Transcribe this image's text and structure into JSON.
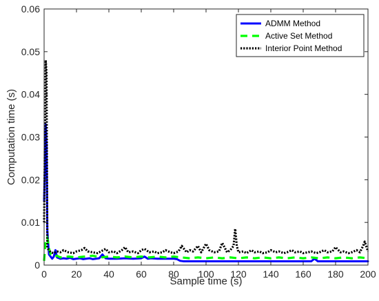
{
  "chart_data": {
    "type": "line",
    "title": "",
    "xlabel": "Sample time (s)",
    "ylabel": "Computation time (s)",
    "xlim": [
      0,
      200
    ],
    "ylim": [
      0,
      0.06
    ],
    "xticks": [
      0,
      20,
      40,
      60,
      80,
      100,
      120,
      140,
      160,
      180,
      200
    ],
    "yticks": [
      0,
      0.01,
      0.02,
      0.03,
      0.04,
      0.05,
      0.06
    ],
    "xtick_labels": [
      "0",
      "20",
      "40",
      "60",
      "80",
      "100",
      "120",
      "140",
      "160",
      "180",
      "200"
    ],
    "ytick_labels": [
      "0",
      "0.01",
      "0.02",
      "0.03",
      "0.04",
      "0.05",
      "0.06"
    ],
    "grid": false,
    "legend_position": "top-right",
    "series": [
      {
        "name": "ADMM Method",
        "color": "#0000ff",
        "style": "solid",
        "x": [
          0,
          1,
          1.5,
          2,
          3,
          4,
          5,
          6,
          7,
          8,
          10,
          12,
          14,
          16,
          18,
          20,
          22,
          24,
          26,
          28,
          30,
          32,
          34,
          36,
          38,
          40,
          45,
          50,
          55,
          60,
          62,
          64,
          66,
          70,
          75,
          80,
          82,
          84,
          86,
          90,
          100,
          110,
          120,
          130,
          140,
          150,
          160,
          165,
          167,
          169,
          170,
          180,
          190,
          200
        ],
        "y": [
          0.015,
          0.033,
          0.028,
          0.008,
          0.0025,
          0.002,
          0.0015,
          0.002,
          0.0035,
          0.0018,
          0.0015,
          0.0016,
          0.0015,
          0.0017,
          0.0014,
          0.0015,
          0.0016,
          0.0014,
          0.0015,
          0.0016,
          0.0014,
          0.0015,
          0.0016,
          0.0025,
          0.0016,
          0.0015,
          0.0015,
          0.0016,
          0.0015,
          0.0016,
          0.002,
          0.0015,
          0.0016,
          0.0015,
          0.0015,
          0.0015,
          0.0014,
          0.001,
          0.0009,
          0.0009,
          0.0009,
          0.0009,
          0.0009,
          0.0009,
          0.0009,
          0.0009,
          0.0009,
          0.0009,
          0.0015,
          0.0009,
          0.0009,
          0.0009,
          0.0009,
          0.0009
        ]
      },
      {
        "name": "Active Set Method",
        "color": "#00ff00",
        "style": "dashed",
        "x": [
          0,
          1,
          2,
          3,
          4,
          6,
          8,
          10,
          15,
          20,
          25,
          30,
          35,
          40,
          45,
          50,
          55,
          60,
          65,
          70,
          75,
          80,
          85,
          90,
          95,
          100,
          105,
          110,
          115,
          120,
          125,
          130,
          135,
          140,
          145,
          150,
          155,
          160,
          165,
          170,
          175,
          180,
          185,
          190,
          195,
          200
        ],
        "y": [
          0.001,
          0.006,
          0.0065,
          0.004,
          0.0025,
          0.002,
          0.0022,
          0.0018,
          0.002,
          0.0018,
          0.002,
          0.0022,
          0.0018,
          0.002,
          0.0018,
          0.002,
          0.0018,
          0.002,
          0.0018,
          0.002,
          0.0018,
          0.002,
          0.0018,
          0.0016,
          0.0018,
          0.0016,
          0.0018,
          0.0016,
          0.0018,
          0.0016,
          0.0018,
          0.0016,
          0.0018,
          0.0016,
          0.0018,
          0.0016,
          0.0018,
          0.0016,
          0.0018,
          0.0016,
          0.0018,
          0.0016,
          0.0018,
          0.0016,
          0.0018,
          0.0016
        ]
      },
      {
        "name": "Interior Point Method",
        "color": "#000000",
        "style": "dotted",
        "x": [
          0,
          1,
          1.5,
          2,
          3,
          4,
          6,
          8,
          10,
          12,
          15,
          18,
          20,
          23,
          25,
          27,
          30,
          33,
          35,
          38,
          40,
          43,
          45,
          48,
          50,
          52,
          55,
          58,
          60,
          62,
          65,
          68,
          70,
          73,
          75,
          78,
          80,
          83,
          85,
          88,
          90,
          92,
          95,
          97,
          100,
          102,
          105,
          108,
          110,
          113,
          115,
          117,
          118,
          119,
          120,
          123,
          125,
          128,
          130,
          133,
          135,
          138,
          140,
          143,
          145,
          148,
          150,
          153,
          155,
          158,
          160,
          163,
          165,
          168,
          170,
          173,
          175,
          178,
          180,
          183,
          185,
          188,
          190,
          193,
          195,
          197,
          198,
          200
        ],
        "y": [
          0.01,
          0.048,
          0.045,
          0.004,
          0.0035,
          0.003,
          0.0028,
          0.0032,
          0.003,
          0.0035,
          0.003,
          0.0028,
          0.0032,
          0.0035,
          0.004,
          0.0032,
          0.003,
          0.0028,
          0.0032,
          0.0038,
          0.003,
          0.0032,
          0.0028,
          0.0035,
          0.0042,
          0.003,
          0.0032,
          0.0028,
          0.0035,
          0.0038,
          0.003,
          0.0032,
          0.0028,
          0.003,
          0.0035,
          0.003,
          0.0028,
          0.0032,
          0.0045,
          0.003,
          0.0035,
          0.0032,
          0.0045,
          0.003,
          0.005,
          0.0035,
          0.003,
          0.0032,
          0.0052,
          0.003,
          0.0035,
          0.0045,
          0.0085,
          0.0045,
          0.003,
          0.0032,
          0.0028,
          0.0035,
          0.003,
          0.0032,
          0.0028,
          0.003,
          0.0035,
          0.003,
          0.0032,
          0.0028,
          0.003,
          0.0035,
          0.003,
          0.0032,
          0.0028,
          0.003,
          0.0032,
          0.0028,
          0.003,
          0.0035,
          0.003,
          0.0032,
          0.0042,
          0.003,
          0.0032,
          0.0028,
          0.003,
          0.0035,
          0.003,
          0.0045,
          0.0055,
          0.0032
        ]
      }
    ]
  }
}
